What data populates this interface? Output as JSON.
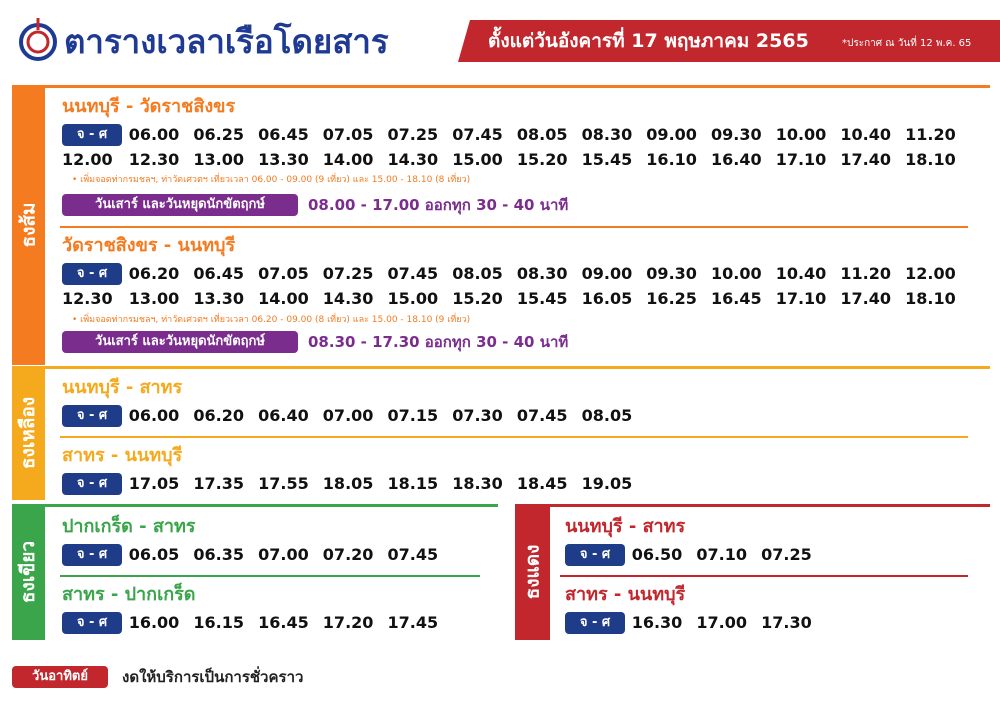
{
  "header": {
    "title": "ตารางเวลาเรือโดยสาร",
    "effective_date": "ตั้งแต่วันอังคารที่ 17 พฤษภาคม 2565",
    "announcement": "*ประกาศ ณ วันที่ 12 พ.ค. 65"
  },
  "sections": [
    {
      "label": "ธงส้ม",
      "routes": [
        {
          "title": "นนทบุรี - วัดราชสิงขร",
          "days": "จ - ศ",
          "times": [
            "06.00",
            "06.25",
            "06.45",
            "07.05",
            "07.25",
            "07.45",
            "08.05",
            "08.30",
            "09.00",
            "09.30",
            "10.00",
            "10.40",
            "11.20",
            "12.00",
            "12.30",
            "13.00",
            "13.30",
            "14.00",
            "14.30",
            "15.00",
            "15.20",
            "15.45",
            "16.10",
            "16.40",
            "17.10",
            "17.40",
            "18.10"
          ],
          "note": "• เพิ่มจอดท่ากรมชลฯ, ท่าวัดเศวตฯ เที่ยวเวลา 06.00 - 09.00 (9 เที่ยว) และ 15.00 - 18.10 (8 เที่ยว)",
          "weekend": {
            "label": "วันเสาร์ และวันหยุดนักขัตฤกษ์",
            "hours": "08.00 - 17.00 ออกทุก 30 - 40 นาที"
          }
        },
        {
          "title": "วัดราชสิงขร - นนทบุรี",
          "days": "จ - ศ",
          "times": [
            "06.20",
            "06.45",
            "07.05",
            "07.25",
            "07.45",
            "08.05",
            "08.30",
            "09.00",
            "09.30",
            "10.00",
            "10.40",
            "11.20",
            "12.00",
            "12.30",
            "13.00",
            "13.30",
            "14.00",
            "14.30",
            "15.00",
            "15.20",
            "15.45",
            "16.05",
            "16.25",
            "16.45",
            "17.10",
            "17.40",
            "18.10"
          ],
          "note": "• เพิ่มจอดท่ากรมชลฯ, ท่าวัดเศวตฯ เที่ยวเวลา 06.20 - 09.00 (8 เที่ยว) และ 15.00 - 18.10 (9 เที่ยว)",
          "weekend": {
            "label": "วันเสาร์ และวันหยุดนักขัตฤกษ์",
            "hours": "08.30 - 17.30 ออกทุก 30 - 40 นาที"
          }
        }
      ]
    },
    {
      "label": "ธงเหลือง",
      "routes": [
        {
          "title": "นนทบุรี - สาทร",
          "days": "จ - ศ",
          "times": [
            "06.00",
            "06.20",
            "06.40",
            "07.00",
            "07.15",
            "07.30",
            "07.45",
            "08.05"
          ]
        },
        {
          "title": "สาทร - นนทบุรี",
          "days": "จ - ศ",
          "times": [
            "17.05",
            "17.35",
            "17.55",
            "18.05",
            "18.15",
            "18.30",
            "18.45",
            "19.05"
          ]
        }
      ]
    },
    {
      "label": "ธงเขียว",
      "routes": [
        {
          "title": "ปากเกร็ด - สาทร",
          "days": "จ - ศ",
          "times": [
            "06.05",
            "06.35",
            "07.00",
            "07.20",
            "07.45"
          ]
        },
        {
          "title": "สาทร - ปากเกร็ด",
          "days": "จ - ศ",
          "times": [
            "16.00",
            "16.15",
            "16.45",
            "17.20",
            "17.45"
          ]
        }
      ]
    },
    {
      "label": "ธงแดง",
      "routes": [
        {
          "title": "นนทบุรี - สาทร",
          "days": "จ - ศ",
          "times": [
            "06.50",
            "07.10",
            "07.25"
          ]
        },
        {
          "title": "สาทร - นนทบุรี",
          "days": "จ - ศ",
          "times": [
            "16.30",
            "17.00",
            "17.30"
          ]
        }
      ]
    }
  ],
  "footer": {
    "day": "วันอาทิตย์",
    "text": "งดให้บริการเป็นการชั่วคราว"
  }
}
